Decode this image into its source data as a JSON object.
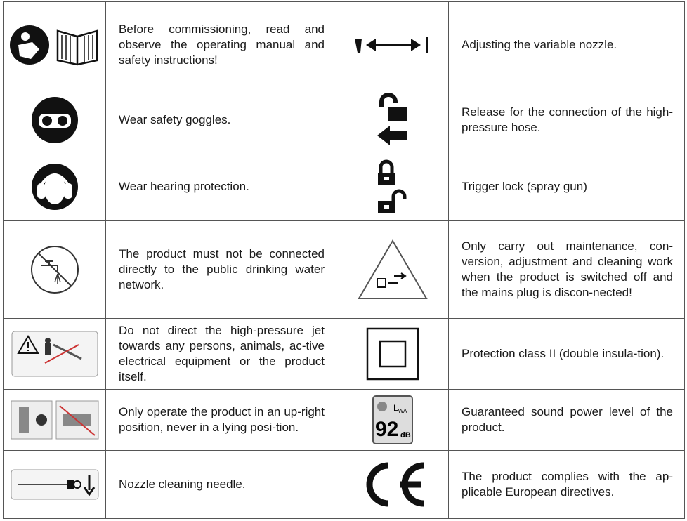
{
  "table": {
    "rows": [
      {
        "left_text": "Before commissioning, read and observe the operating manual and safety instructions!",
        "right_text": "Adjusting the variable nozzle."
      },
      {
        "left_text": "Wear safety goggles.",
        "right_text": "Release for the connection of the high-pressure hose."
      },
      {
        "left_text": "Wear hearing protection.",
        "right_text": "Trigger lock (spray gun)"
      },
      {
        "left_text": "The product must not be connected directly to the public drinking water network.",
        "right_text": "Only carry out maintenance, con-version, adjustment and cleaning work when the product is switched off and the mains plug is discon-nected!"
      },
      {
        "left_text": "Do not direct the high-pressure jet towards any persons, animals, ac-tive electrical equipment or the product itself.",
        "right_text": "Protection class II (double insula-tion)."
      },
      {
        "left_text": "Only operate the product in an up-right position, never in a lying posi-tion.",
        "right_text": "Guaranteed sound power level of the product."
      },
      {
        "left_text": "Nozzle cleaning needle.",
        "right_text": "The product complies with the ap-plicable European directives."
      }
    ]
  },
  "sound_icon": {
    "symbol": "L",
    "subscript": "WA",
    "value": "92",
    "unit": "dB"
  }
}
